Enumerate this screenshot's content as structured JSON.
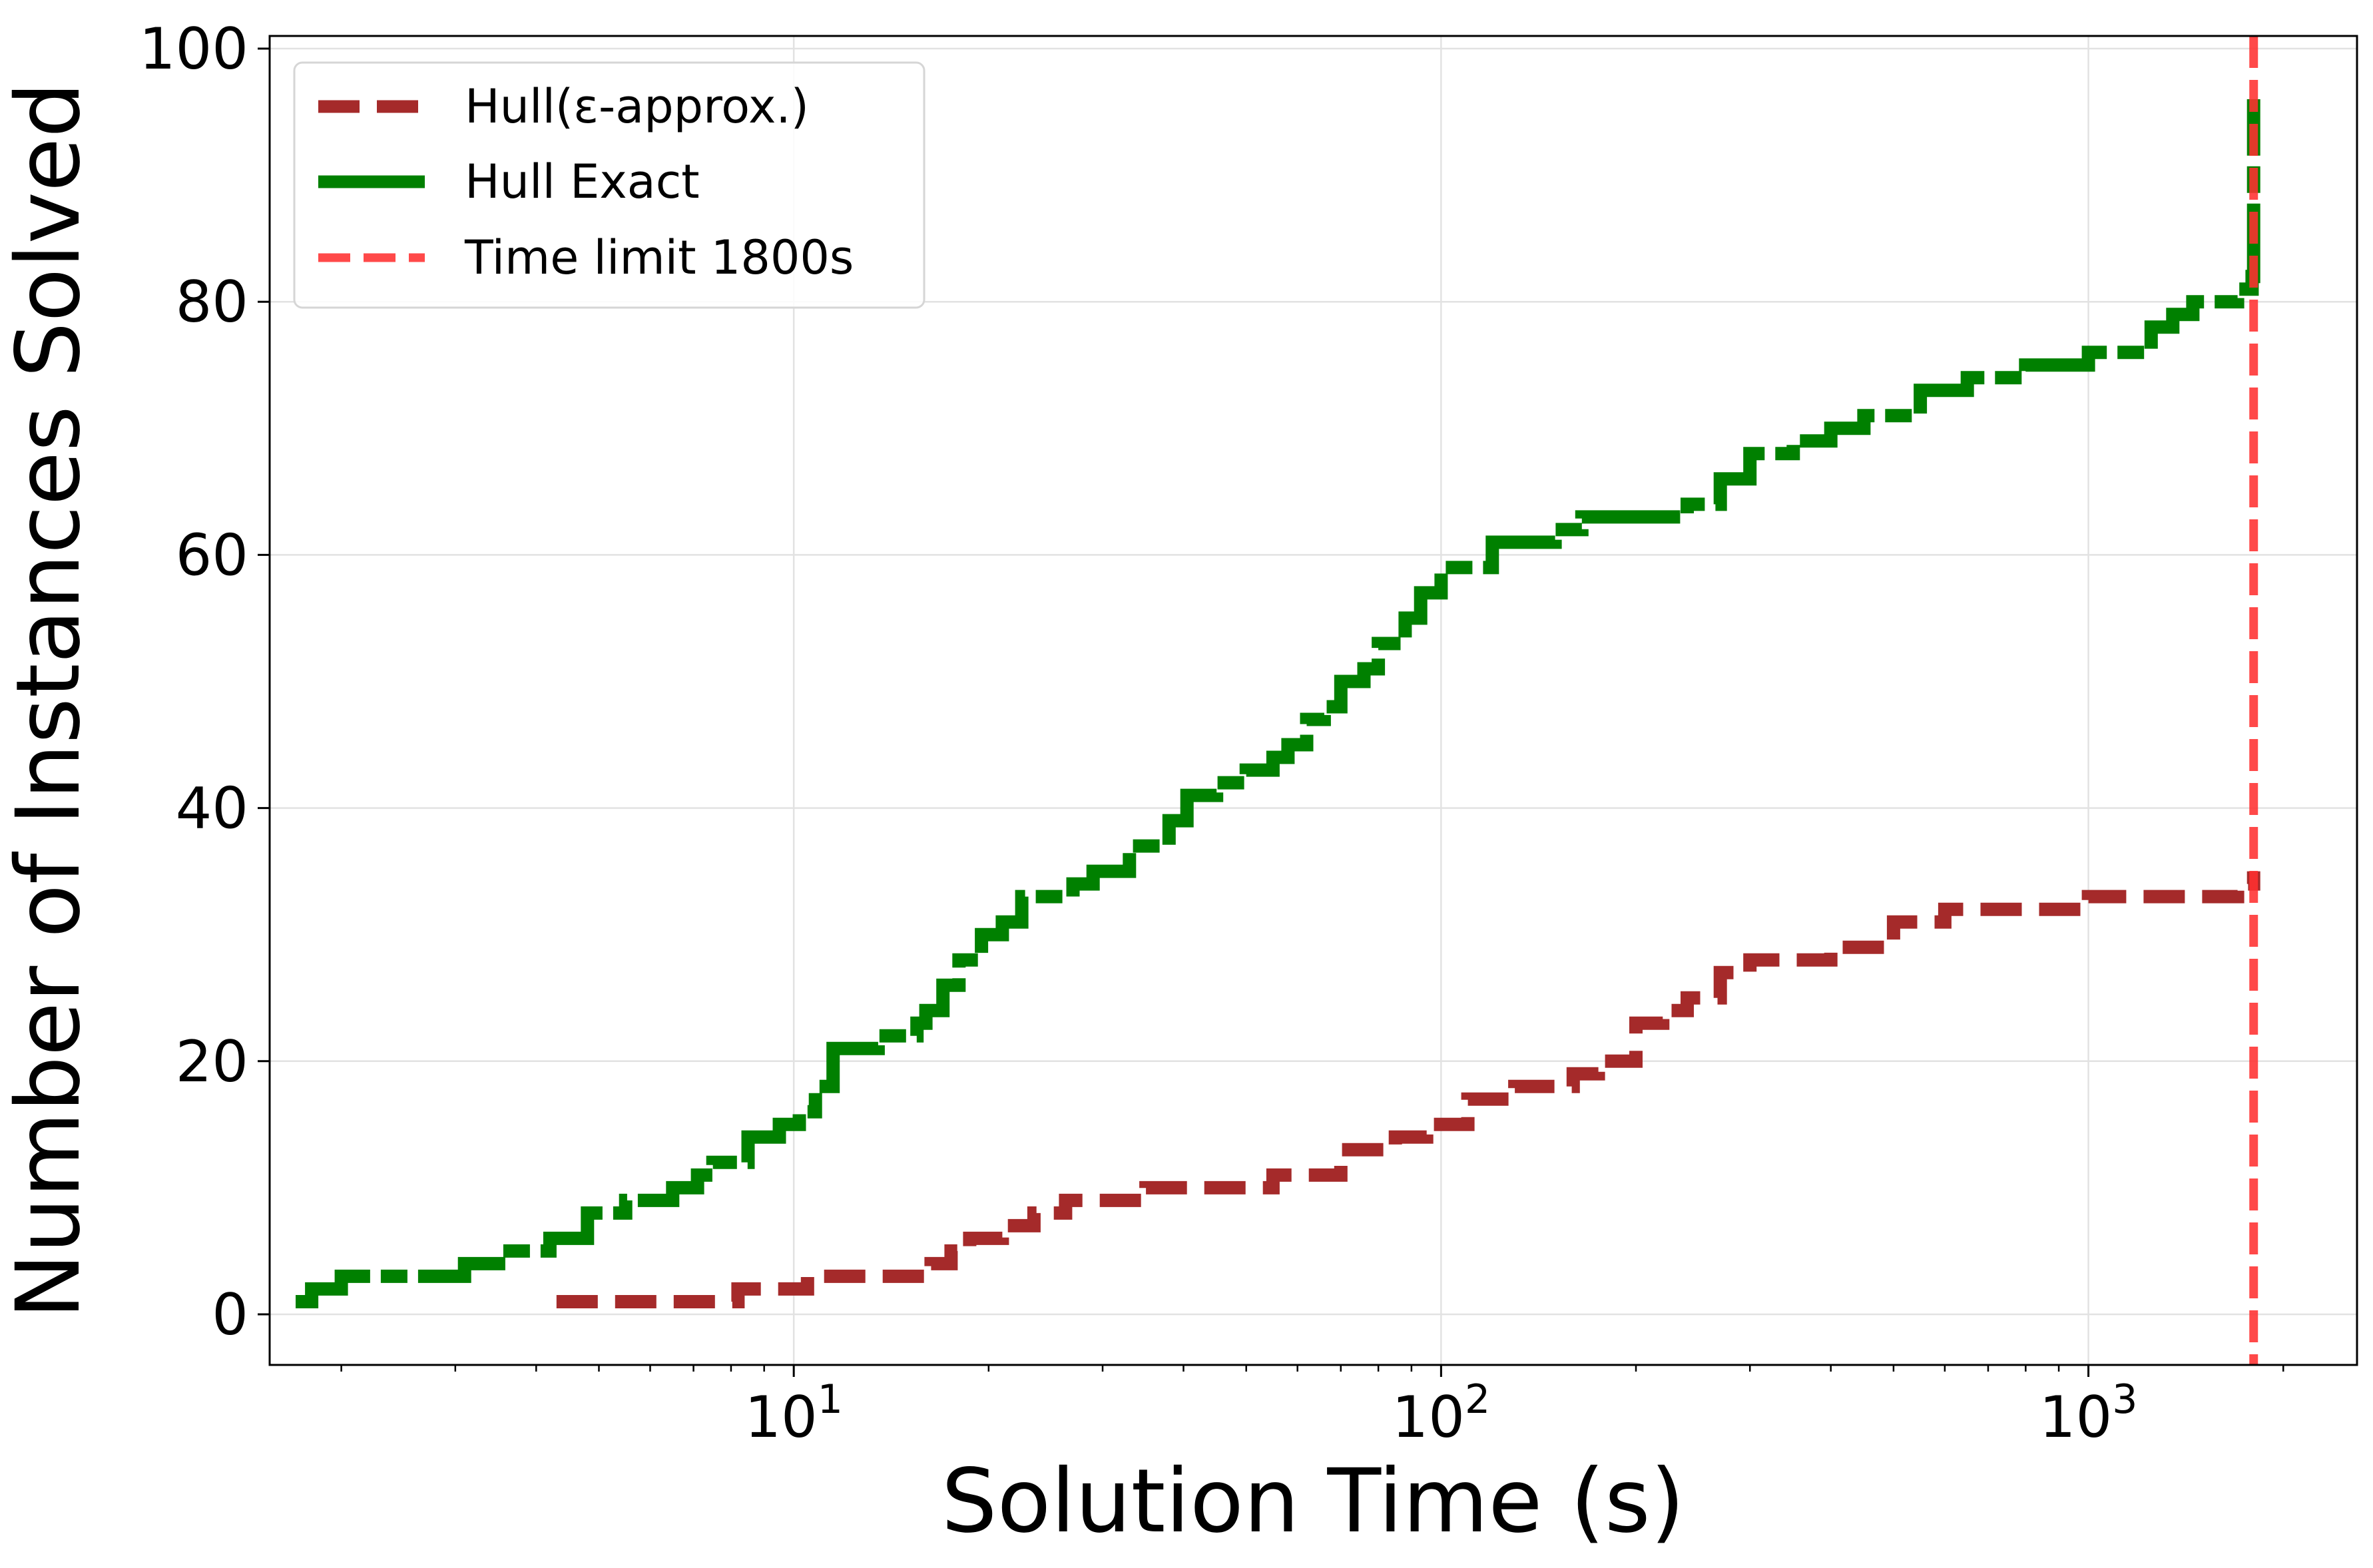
{
  "chart_data": {
    "type": "line",
    "xlabel": "Solution Time (s)",
    "ylabel": "Number of Instances Solved",
    "x_scale": "log",
    "xlim": [
      1.55,
      2600
    ],
    "ylim": [
      -4,
      101
    ],
    "x_tick_base": "10",
    "x_ticks": [
      {
        "value": 10,
        "exp": "1"
      },
      {
        "value": 100,
        "exp": "2"
      },
      {
        "value": 1000,
        "exp": "3"
      }
    ],
    "y_ticks": [
      0,
      20,
      40,
      60,
      80,
      100
    ],
    "grid": true,
    "legend_position": "top-left",
    "series": [
      {
        "name": "Hull(ε-approx.)",
        "color": "#a52a2a",
        "style": "dashed",
        "x": [
          4.3,
          7.0,
          8.2,
          10.5,
          14.0,
          16.3,
          17.5,
          18.7,
          21.0,
          23.5,
          26.3,
          28.5,
          35.0,
          45.0,
          55.0,
          60.0,
          70.0,
          85.0,
          95.0,
          110.0,
          130.0,
          145.0,
          160.0,
          175.0,
          200.0,
          220.0,
          240.0,
          270.0,
          300.0,
          400.0,
          500.0,
          560.0,
          600.0,
          700.0,
          1000.0,
          1500.0,
          1650.0,
          1700.0,
          1750.0,
          1800.0
        ],
        "y": [
          1,
          1,
          2,
          3,
          3,
          4,
          5,
          6,
          7,
          8,
          9,
          9,
          10,
          10,
          11,
          11,
          13,
          14,
          15,
          17,
          18,
          18,
          19,
          20,
          23,
          24,
          25,
          27,
          28,
          29,
          31,
          31,
          32,
          32,
          33,
          33,
          33,
          34,
          34,
          35
        ]
      },
      {
        "name": "Hull Exact",
        "color": "#008000",
        "style": "solid",
        "x": [
          1.7,
          1.8,
          2.0,
          2.8,
          3.1,
          3.5,
          4.2,
          4.8,
          5.5,
          6.5,
          7.1,
          7.5,
          8.5,
          9.5,
          10.2,
          10.8,
          11.5,
          13.5,
          15.5,
          16.0,
          17.0,
          18.0,
          19.5,
          21.0,
          22.5,
          26.5,
          27.0,
          29.0,
          33.0,
          38.0,
          40.5,
          45.0,
          50.0,
          55.0,
          58.0,
          62.0,
          66.0,
          70.0,
          76.0,
          80.0,
          84.0,
          88.0,
          93.0,
          100.0,
          120.0,
          150.0,
          165.0,
          200.0,
          240.0,
          270.0,
          300.0,
          350.0,
          400.0,
          450.0,
          550.0,
          650.0,
          720.0,
          800.0,
          900.0,
          1000.0,
          1250.0,
          1350.0,
          1450.0,
          1700.0,
          1790.0,
          1800.0
        ],
        "y": [
          1,
          2,
          3,
          3,
          4,
          5,
          6,
          8,
          9,
          10,
          11,
          12,
          14,
          15,
          16,
          18,
          21,
          22,
          23,
          24,
          26,
          28,
          30,
          31,
          33,
          33,
          34,
          35,
          37,
          39,
          41,
          42,
          43,
          44,
          45,
          47,
          48,
          50,
          51,
          53,
          53,
          55,
          57,
          59,
          61,
          62,
          63,
          63,
          64,
          66,
          68,
          69,
          70,
          71,
          73,
          74,
          74,
          75,
          75,
          76,
          78,
          79,
          80,
          81,
          82,
          96
        ]
      }
    ],
    "reference_lines": [
      {
        "name": "Time limit 1800s",
        "x": 1800,
        "color": "#ff3030",
        "style": "dashed"
      }
    ]
  }
}
